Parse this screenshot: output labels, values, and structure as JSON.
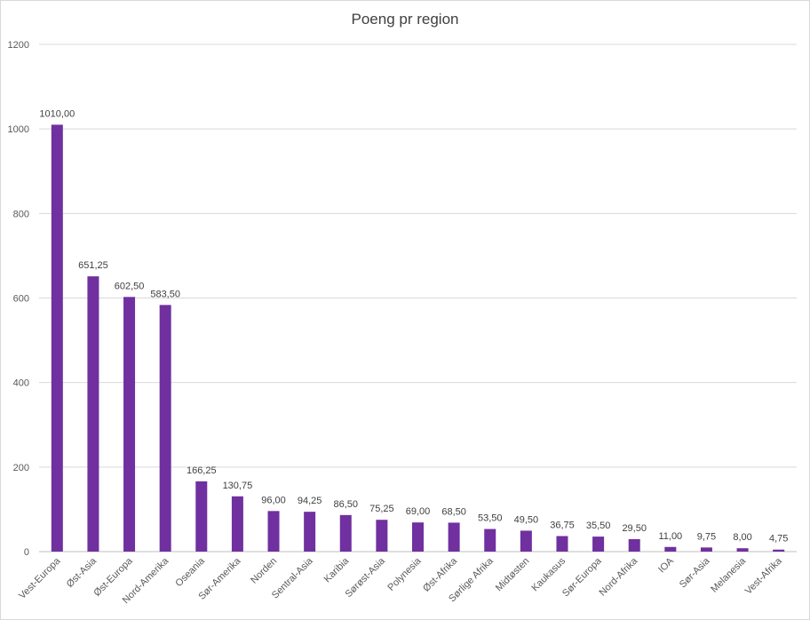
{
  "chart_data": {
    "type": "bar",
    "title": "Poeng pr region",
    "xlabel": "",
    "ylabel": "",
    "ylim": [
      0,
      1200
    ],
    "yticks": [
      0,
      200,
      400,
      600,
      800,
      1000,
      1200
    ],
    "grid": true,
    "legend": "none",
    "bar_color": "#7030A0",
    "categories": [
      "Vest-Europa",
      "Øst-Asia",
      "Øst-Europa",
      "Nord-Amerika",
      "Oseania",
      "Sør-Amerika",
      "Norden",
      "Sentral-Asia",
      "Karibia",
      "Sørøst-Asia",
      "Polynesia",
      "Øst-Afrika",
      "Sørlige Afrika",
      "Midtøsten",
      "Kaukasus",
      "Sør-Europa",
      "Nord-Afrika",
      "IOA",
      "Sør-Asia",
      "Melanesia",
      "Vest-Afrika"
    ],
    "values": [
      1010.0,
      651.25,
      602.5,
      583.5,
      166.25,
      130.75,
      96.0,
      94.25,
      86.5,
      75.25,
      69.0,
      68.5,
      53.5,
      49.5,
      36.75,
      35.5,
      29.5,
      11.0,
      9.75,
      8.0,
      4.75
    ],
    "data_labels": [
      "1010,00",
      "651,25",
      "602,50",
      "583,50",
      "166,25",
      "130,75",
      "96,00",
      "94,25",
      "86,50",
      "75,25",
      "69,00",
      "68,50",
      "53,50",
      "49,50",
      "36,75",
      "35,50",
      "29,50",
      "11,00",
      "9,75",
      "8,00",
      "4,75"
    ]
  }
}
